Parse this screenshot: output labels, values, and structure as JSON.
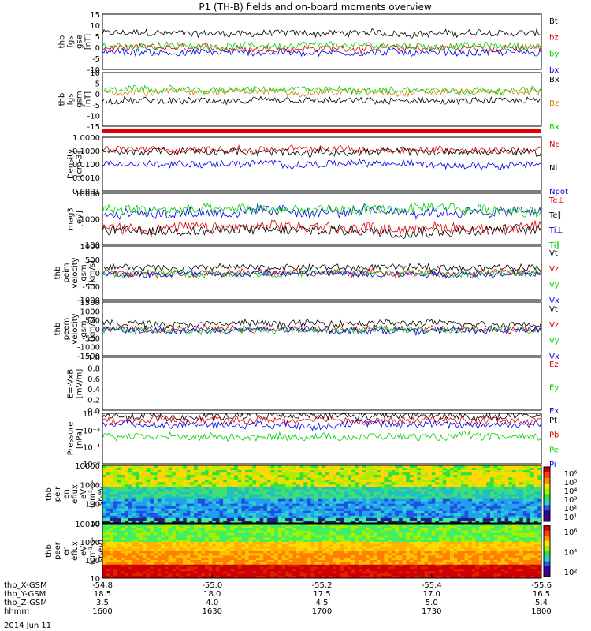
{
  "title": "P1 (TH-B) fields and on-board moments overview",
  "date": "2014 Jun 11",
  "colors": {
    "black": "#000000",
    "red": "#e00000",
    "green": "#00d000",
    "blue": "#0000e0",
    "orange": "#d08000"
  },
  "chart_data": [
    {
      "id": "fgs-gse",
      "type": "line",
      "ylabel": [
        "thb",
        "fgs",
        "gse",
        "[nT]"
      ],
      "yticks": [
        "15",
        "10",
        "5",
        "0",
        "-5",
        "-10"
      ],
      "ylim": [
        -10,
        16
      ],
      "series": [
        {
          "name": "Bt",
          "color": "black",
          "level": 7
        },
        {
          "name": "bz",
          "color": "red",
          "level": 0
        },
        {
          "name": "by",
          "color": "green",
          "level": 1
        },
        {
          "name": "bx",
          "color": "blue",
          "level": -2
        }
      ]
    },
    {
      "id": "fgs-gsm",
      "type": "line",
      "ylabel": [
        "thb",
        "fgs",
        "gsm",
        "[nT]"
      ],
      "yticks": [
        "10",
        "5",
        "0",
        "-5",
        "-10",
        "-15"
      ],
      "ylim": [
        -18,
        10
      ],
      "series": [
        {
          "name": "Bx",
          "color": "black",
          "level": -5
        },
        {
          "name": "Bz",
          "color": "orange",
          "level": 0
        },
        {
          "name": "Bx",
          "color": "green",
          "level": 1
        }
      ]
    },
    {
      "id": "density",
      "type": "line",
      "ylabel": [
        "Density",
        "[cm-3]"
      ],
      "yticks": [
        "1.0000",
        "0.1000",
        "0.0100",
        "0.0010",
        "0.0001"
      ],
      "ylim": [
        0.0001,
        1
      ],
      "log": true,
      "series": [
        {
          "name": "Ne",
          "color": "red",
          "level": 0.12
        },
        {
          "name": "Ni",
          "color": "black",
          "level": 0.08
        },
        {
          "name": "Npot",
          "color": "blue",
          "level": 0.01
        }
      ]
    },
    {
      "id": "temperature",
      "type": "line",
      "ylabel": [
        "mag3",
        "[eV]"
      ],
      "yticks": [
        "10000",
        "1000",
        "100"
      ],
      "ylim": [
        30,
        10000
      ],
      "log": true,
      "series": [
        {
          "name": "Te⊥",
          "color": "red",
          "level": 200
        },
        {
          "name": "Te∥",
          "color": "black",
          "level": 150
        },
        {
          "name": "Ti⊥",
          "color": "blue",
          "level": 1200
        },
        {
          "name": "Ti∥",
          "color": "green",
          "level": 1500
        }
      ]
    },
    {
      "id": "peim-velocity",
      "type": "line",
      "ylabel": [
        "thb",
        "peim",
        "velocity",
        "gsm",
        "[km/s]"
      ],
      "yticks": [
        "1000",
        "500",
        "0",
        "-500",
        "-1000"
      ],
      "ylim": [
        -1000,
        1000
      ],
      "series": [
        {
          "name": "Vt",
          "color": "black",
          "level": 200
        },
        {
          "name": "Vz",
          "color": "red",
          "level": 0
        },
        {
          "name": "Vy",
          "color": "green",
          "level": -20
        },
        {
          "name": "Vx",
          "color": "blue",
          "level": -30
        }
      ]
    },
    {
      "id": "peem-velocity",
      "type": "line",
      "ylabel": [
        "thb",
        "peem",
        "velocity",
        "gsm",
        "[km/s]"
      ],
      "yticks": [
        "1500",
        "1000",
        "500",
        "0",
        "-500",
        "-1000",
        "-1500"
      ],
      "ylim": [
        -1500,
        1500
      ],
      "series": [
        {
          "name": "Vt",
          "color": "black",
          "level": 300
        },
        {
          "name": "Vz",
          "color": "red",
          "level": 0
        },
        {
          "name": "Vy",
          "color": "green",
          "level": -50
        },
        {
          "name": "Vx",
          "color": "blue",
          "level": -80
        }
      ]
    },
    {
      "id": "efield",
      "type": "line",
      "ylabel": [
        "E=-VxB",
        "[mV/m]"
      ],
      "yticks": [
        "1.0",
        "0.8",
        "0.6",
        "0.4",
        "0.2",
        "0.0"
      ],
      "ylim": [
        0,
        1
      ],
      "series": [
        {
          "name": "Ez",
          "color": "red"
        },
        {
          "name": "Ey",
          "color": "green"
        },
        {
          "name": "Ex",
          "color": "blue"
        }
      ]
    },
    {
      "id": "pressure",
      "type": "line",
      "ylabel": [
        "Pressure",
        "[nPa]"
      ],
      "yticks": [
        "10⁻²",
        "10⁻³",
        "10⁻⁴",
        "10⁻⁵"
      ],
      "ylim": [
        1e-05,
        0.05
      ],
      "log": true,
      "series": [
        {
          "name": "Pt",
          "color": "black",
          "level": 0.03
        },
        {
          "name": "Pb",
          "color": "red",
          "level": 0.015
        },
        {
          "name": "Pe",
          "color": "green",
          "level": 0.001
        },
        {
          "name": "Pi",
          "color": "blue",
          "level": 0.008
        }
      ]
    },
    {
      "id": "peir-spectrogram",
      "type": "heatmap",
      "ylabel": [
        "thb",
        "peir",
        "en",
        "eflux",
        "eV",
        "(cm²-s-",
        "sr-eV)"
      ],
      "yticks": [
        "10000",
        "1000",
        "100",
        "10"
      ],
      "colorbar_ticks": [
        "10⁶",
        "10⁵",
        "10⁴",
        "10³",
        "10²",
        "10¹"
      ]
    },
    {
      "id": "peer-spectrogram",
      "type": "heatmap",
      "ylabel": [
        "thb",
        "peer",
        "en",
        "eflux",
        "eV",
        "(cm²-s-",
        "sr-eV)"
      ],
      "yticks": [
        "10000",
        "1000",
        "100",
        "10"
      ],
      "colorbar_ticks": [
        "10⁶",
        "10⁴",
        "10²"
      ]
    }
  ],
  "xaxis": {
    "rows": [
      {
        "label": "thb_X-GSM",
        "values": [
          "-54.8",
          "-55.0",
          "-55.2",
          "-55.4",
          "-55.6"
        ]
      },
      {
        "label": "thb_Y-GSM",
        "values": [
          "18.5",
          "18.0",
          "17.5",
          "17.0",
          "16.5"
        ]
      },
      {
        "label": "thb_Z-GSM",
        "values": [
          "3.5",
          "4.0",
          "4.5",
          "5.0",
          "5.4"
        ]
      },
      {
        "label": "hhmm",
        "values": [
          "1600",
          "1630",
          "1700",
          "1730",
          "1800"
        ]
      }
    ]
  }
}
